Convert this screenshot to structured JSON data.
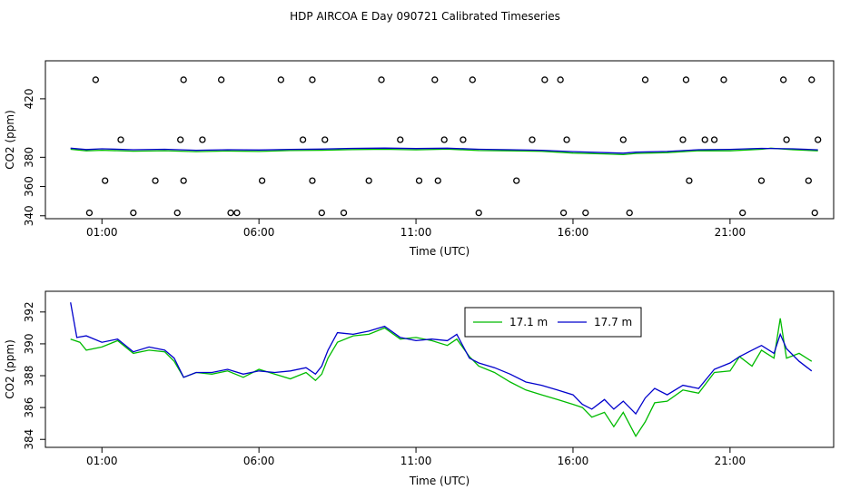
{
  "title": "HDP AIRCOA E  Day 090721  Calibrated Timeseries",
  "chart_data": [
    {
      "type": "scatter",
      "xlabel": "Time (UTC)",
      "ylabel": "CO2 (ppm)",
      "xlim": [
        -0.8,
        24.3
      ],
      "ylim": [
        338,
        446
      ],
      "x_tick_values": [
        1,
        6,
        11,
        16,
        21
      ],
      "x_tick_labels": [
        "01:00",
        "06:00",
        "11:00",
        "16:00",
        "21:00"
      ],
      "y_tick_values": [
        340,
        360,
        380,
        420
      ],
      "y_tick_labels": [
        "340",
        "360",
        "380",
        "420"
      ],
      "grid": false,
      "legend": "none",
      "series": [
        {
          "color": "#00bb00",
          "values": [
            [
              0,
              385.5
            ],
            [
              0.5,
              384.4
            ],
            [
              1,
              384.8
            ],
            [
              2,
              384.2
            ],
            [
              3,
              384.5
            ],
            [
              4,
              383.9
            ],
            [
              5,
              384.3
            ],
            [
              6,
              384
            ],
            [
              7,
              384.6
            ],
            [
              8,
              384.8
            ],
            [
              9,
              385.3
            ],
            [
              10,
              385.5
            ],
            [
              11,
              385.1
            ],
            [
              12,
              385.6
            ],
            [
              13,
              384.6
            ],
            [
              14,
              384.4
            ],
            [
              15,
              384.1
            ],
            [
              16,
              382.9
            ],
            [
              17,
              382.3
            ],
            [
              17.6,
              381.8
            ],
            [
              18,
              382.6
            ],
            [
              19,
              383.2
            ],
            [
              20,
              384.5
            ],
            [
              21,
              384.4
            ],
            [
              22,
              385.5
            ],
            [
              22.3,
              386.2
            ],
            [
              23,
              385.2
            ],
            [
              23.8,
              384.4
            ]
          ]
        },
        {
          "color": "#0000cc",
          "values": [
            [
              0,
              386.2
            ],
            [
              0.5,
              385.3
            ],
            [
              1,
              385.8
            ],
            [
              2,
              385.2
            ],
            [
              3,
              385.5
            ],
            [
              4,
              384.8
            ],
            [
              5,
              385.2
            ],
            [
              6,
              385
            ],
            [
              7,
              385.4
            ],
            [
              8,
              385.6
            ],
            [
              9,
              386.1
            ],
            [
              10,
              386.3
            ],
            [
              11,
              386
            ],
            [
              12,
              386.2
            ],
            [
              13,
              385.5
            ],
            [
              14,
              385.2
            ],
            [
              15,
              384.8
            ],
            [
              16,
              383.9
            ],
            [
              17,
              383.2
            ],
            [
              17.6,
              382.8
            ],
            [
              18,
              383.5
            ],
            [
              19,
              384
            ],
            [
              20,
              385.2
            ],
            [
              21,
              385.4
            ],
            [
              22,
              386.1
            ],
            [
              23,
              385.8
            ],
            [
              23.8,
              385.1
            ]
          ]
        },
        {
          "color": "#000000",
          "marker": "open-circle",
          "values": [
            [
              1.1,
              364
            ],
            [
              3.6,
              364
            ],
            [
              5.1,
              342
            ],
            [
              6.1,
              364
            ],
            [
              7.7,
              364
            ],
            [
              8.1,
              392
            ],
            [
              8.7,
              342
            ],
            [
              9.5,
              364
            ],
            [
              11.1,
              364
            ],
            [
              11.7,
              364
            ],
            [
              11.9,
              392
            ],
            [
              13,
              342
            ],
            [
              14.2,
              364
            ],
            [
              15.7,
              342
            ],
            [
              16.4,
              342
            ],
            [
              17.6,
              392
            ],
            [
              19.7,
              364
            ],
            [
              20.5,
              392
            ],
            [
              22,
              364
            ],
            [
              23.5,
              364
            ],
            [
              23.7,
              342
            ],
            [
              0.6,
              342
            ],
            [
              2,
              342
            ],
            [
              2.7,
              364
            ],
            [
              3.4,
              342
            ],
            [
              3.5,
              392
            ],
            [
              4.2,
              392
            ],
            [
              5.3,
              342
            ],
            [
              7.4,
              392
            ],
            [
              8,
              342
            ],
            [
              10.5,
              392
            ],
            [
              12.5,
              392
            ],
            [
              14.7,
              392
            ],
            [
              15.8,
              392
            ],
            [
              17.8,
              342
            ],
            [
              19.5,
              392
            ],
            [
              20.2,
              392
            ],
            [
              21.4,
              342
            ],
            [
              22.8,
              392
            ],
            [
              23.8,
              392
            ],
            [
              1.6,
              392
            ],
            [
              7.7,
              433
            ],
            [
              0.8,
              433
            ],
            [
              4.8,
              433
            ],
            [
              3.6,
              433
            ],
            [
              6.7,
              433
            ],
            [
              9.9,
              433
            ],
            [
              11.6,
              433
            ],
            [
              12.8,
              433
            ],
            [
              15.1,
              433
            ],
            [
              15.6,
              433
            ],
            [
              18.3,
              433
            ],
            [
              19.6,
              433
            ],
            [
              20.8,
              433
            ],
            [
              22.7,
              433
            ],
            [
              23.6,
              433
            ]
          ]
        }
      ]
    },
    {
      "type": "line",
      "xlabel": "Time (UTC)",
      "ylabel": "CO2 (ppm)",
      "xlim": [
        -0.8,
        24.3
      ],
      "ylim": [
        383.5,
        393.3
      ],
      "x_tick_values": [
        1,
        6,
        11,
        16,
        21
      ],
      "x_tick_labels": [
        "01:00",
        "06:00",
        "11:00",
        "16:00",
        "21:00"
      ],
      "y_tick_values": [
        384,
        386,
        388,
        390,
        392
      ],
      "y_tick_labels": [
        "384",
        "386",
        "388",
        "390",
        "392"
      ],
      "grid": false,
      "legend": "top-center",
      "series": [
        {
          "name": "17.1 m",
          "color": "#00bb00",
          "values": [
            [
              0,
              390.3
            ],
            [
              0.3,
              390.1
            ],
            [
              0.5,
              389.6
            ],
            [
              1,
              389.8
            ],
            [
              1.5,
              390.2
            ],
            [
              2,
              389.4
            ],
            [
              2.5,
              389.6
            ],
            [
              3,
              389.5
            ],
            [
              3.3,
              388.9
            ],
            [
              3.6,
              387.9
            ],
            [
              4,
              388.2
            ],
            [
              4.5,
              388.1
            ],
            [
              5,
              388.3
            ],
            [
              5.5,
              387.9
            ],
            [
              6,
              388.4
            ],
            [
              6.5,
              388.1
            ],
            [
              7,
              387.8
            ],
            [
              7.5,
              388.2
            ],
            [
              7.8,
              387.7
            ],
            [
              8,
              388.1
            ],
            [
              8.2,
              389.1
            ],
            [
              8.5,
              390.1
            ],
            [
              9,
              390.5
            ],
            [
              9.5,
              390.6
            ],
            [
              10,
              391
            ],
            [
              10.5,
              390.3
            ],
            [
              11,
              390.4
            ],
            [
              11.5,
              390.2
            ],
            [
              12,
              389.9
            ],
            [
              12.3,
              390.3
            ],
            [
              12.7,
              389.2
            ],
            [
              13,
              388.6
            ],
            [
              13.5,
              388.2
            ],
            [
              14,
              387.6
            ],
            [
              14.5,
              387.1
            ],
            [
              15,
              386.8
            ],
            [
              15.5,
              386.5
            ],
            [
              16,
              386.2
            ],
            [
              16.3,
              386
            ],
            [
              16.6,
              385.4
            ],
            [
              17,
              385.7
            ],
            [
              17.3,
              384.8
            ],
            [
              17.6,
              385.7
            ],
            [
              18,
              384.2
            ],
            [
              18.3,
              385.1
            ],
            [
              18.6,
              386.3
            ],
            [
              19,
              386.4
            ],
            [
              19.5,
              387.1
            ],
            [
              20,
              386.9
            ],
            [
              20.5,
              388.2
            ],
            [
              21,
              388.3
            ],
            [
              21.3,
              389.2
            ],
            [
              21.7,
              388.6
            ],
            [
              22,
              389.6
            ],
            [
              22.4,
              389.1
            ],
            [
              22.6,
              391.6
            ],
            [
              22.8,
              389.1
            ],
            [
              23.2,
              389.4
            ],
            [
              23.6,
              388.9
            ]
          ]
        },
        {
          "name": "17.7 m",
          "color": "#0000cc",
          "values": [
            [
              0,
              392.6
            ],
            [
              0.2,
              390.4
            ],
            [
              0.5,
              390.5
            ],
            [
              1,
              390.1
            ],
            [
              1.5,
              390.3
            ],
            [
              2,
              389.5
            ],
            [
              2.5,
              389.8
            ],
            [
              3,
              389.6
            ],
            [
              3.3,
              389.1
            ],
            [
              3.6,
              387.9
            ],
            [
              4,
              388.2
            ],
            [
              4.5,
              388.2
            ],
            [
              5,
              388.4
            ],
            [
              5.5,
              388.1
            ],
            [
              6,
              388.3
            ],
            [
              6.5,
              388.2
            ],
            [
              7,
              388.3
            ],
            [
              7.5,
              388.5
            ],
            [
              7.8,
              388.1
            ],
            [
              8,
              388.6
            ],
            [
              8.2,
              389.6
            ],
            [
              8.5,
              390.7
            ],
            [
              9,
              390.6
            ],
            [
              9.5,
              390.8
            ],
            [
              10,
              391.1
            ],
            [
              10.5,
              390.4
            ],
            [
              11,
              390.2
            ],
            [
              11.5,
              390.3
            ],
            [
              12,
              390.2
            ],
            [
              12.3,
              390.6
            ],
            [
              12.7,
              389.1
            ],
            [
              13,
              388.8
            ],
            [
              13.5,
              388.5
            ],
            [
              14,
              388.1
            ],
            [
              14.5,
              387.6
            ],
            [
              15,
              387.4
            ],
            [
              15.5,
              387.1
            ],
            [
              16,
              386.8
            ],
            [
              16.3,
              386.2
            ],
            [
              16.6,
              385.9
            ],
            [
              17,
              386.5
            ],
            [
              17.3,
              385.9
            ],
            [
              17.6,
              386.4
            ],
            [
              18,
              385.6
            ],
            [
              18.3,
              386.6
            ],
            [
              18.6,
              387.2
            ],
            [
              19,
              386.8
            ],
            [
              19.5,
              387.4
            ],
            [
              20,
              387.2
            ],
            [
              20.5,
              388.4
            ],
            [
              21,
              388.8
            ],
            [
              21.3,
              389.2
            ],
            [
              21.7,
              389.6
            ],
            [
              22,
              389.9
            ],
            [
              22.4,
              389.4
            ],
            [
              22.6,
              390.6
            ],
            [
              22.8,
              389.7
            ],
            [
              23.2,
              388.9
            ],
            [
              23.6,
              388.3
            ]
          ]
        }
      ]
    }
  ]
}
